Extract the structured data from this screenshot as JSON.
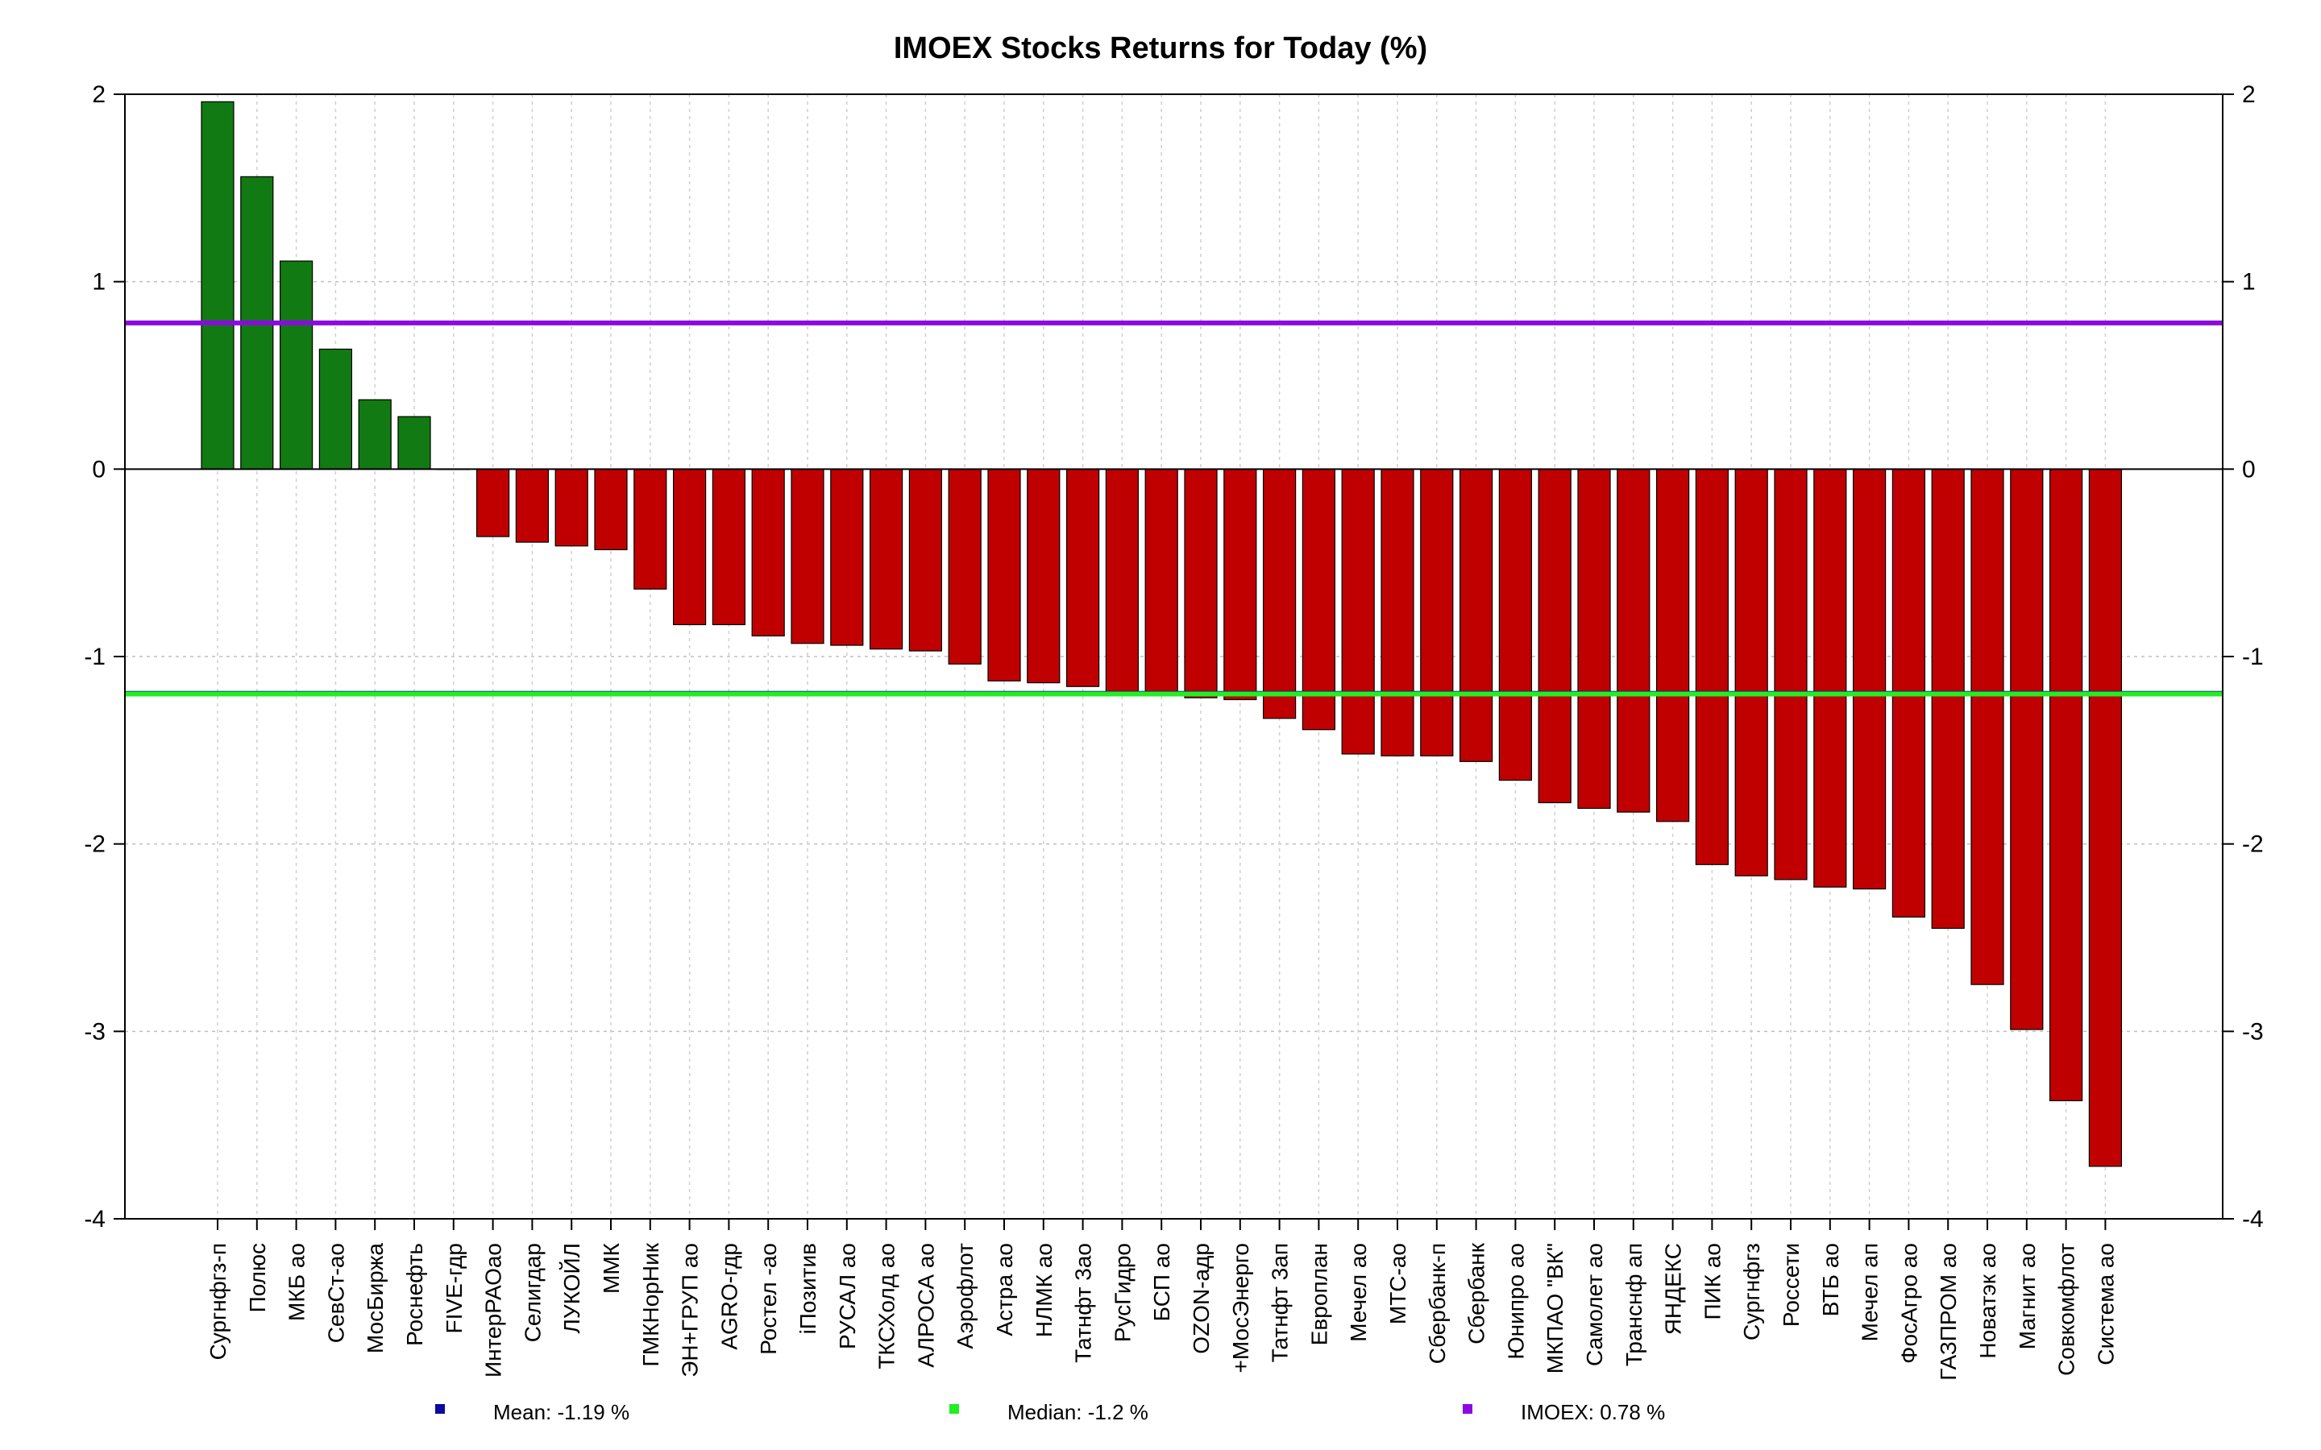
{
  "chart_data": {
    "type": "bar",
    "title": "IMOEX Stocks Returns for Today (%)",
    "xlabel": "",
    "ylabel": "",
    "ylim": [
      -4,
      2
    ],
    "yticks": [
      "2",
      "1",
      "0",
      "-1",
      "-2",
      "-3",
      "-4"
    ],
    "grid": true,
    "categories": [
      "Сургнфгз-п",
      "Полюс",
      "МКБ ао",
      "СевСт-ао",
      "МосБиржа",
      "Роснефть",
      "FIVE-гдр",
      "ИнтерРАОао",
      "Селигдар",
      "ЛУКОЙЛ",
      "ММК",
      "ГМКНорНик",
      "ЭН+ГРУП ао",
      "AGRO-гдр",
      "Ростел -ао",
      "iПозитив",
      "РУСАЛ ао",
      "ТКСХолд ао",
      "АЛРОСА ао",
      "Аэрофлот",
      "Астра ао",
      "НЛМК ао",
      "Татнфт 3ао",
      "РусГидро",
      "БСП ао",
      "OZON-адр",
      "+МосЭнерго",
      "Татнфт 3ап",
      "Европлан",
      "Мечел ао",
      "МТС-ао",
      "Сбербанк-п",
      "Сбербанк",
      "Юнипро ао",
      "МКПАО \"ВК\"",
      "Самолет ао",
      "Транснф ап",
      "ЯНДЕКС",
      "ПИК ао",
      "Сургнфгз",
      "Россети",
      "ВТБ ао",
      "Мечел ап",
      "ФосАгро ао",
      "ГАЗПРОМ ао",
      "Новатэк ао",
      "Магнит ао",
      "Совкомфлот",
      "Система ао"
    ],
    "values": [
      1.96,
      1.56,
      1.11,
      0.64,
      0.37,
      0.28,
      0.0,
      -0.36,
      -0.39,
      -0.41,
      -0.43,
      -0.64,
      -0.83,
      -0.83,
      -0.89,
      -0.93,
      -0.94,
      -0.96,
      -0.97,
      -1.04,
      -1.13,
      -1.14,
      -1.16,
      -1.2,
      -1.2,
      -1.22,
      -1.23,
      -1.33,
      -1.39,
      -1.52,
      -1.53,
      -1.53,
      -1.56,
      -1.66,
      -1.78,
      -1.81,
      -1.83,
      -1.88,
      -2.11,
      -2.17,
      -2.19,
      -2.23,
      -2.24,
      -2.39,
      -2.45,
      -2.75,
      -2.99,
      -3.37,
      -3.72
    ],
    "colors": {
      "positive": "#127a12",
      "negative": "#c00000",
      "mean": "#0a0aa0",
      "median": "#22ee22",
      "imoex": "#8a0ae0"
    },
    "reference_lines": [
      {
        "name": "Mean",
        "value": -1.19,
        "color": "#0a0aa0"
      },
      {
        "name": "Median",
        "value": -1.2,
        "color": "#22ee22"
      },
      {
        "name": "IMOEX",
        "value": 0.78,
        "color": "#8a0ae0"
      }
    ],
    "legend": {
      "placement": "bottom",
      "items": [
        {
          "label": "Mean: -1.19 %",
          "color": "#0a0aa0"
        },
        {
          "label": "Median: -1.2 %",
          "color": "#22ee22"
        },
        {
          "label": "IMOEX: 0.78 %",
          "color": "#8a0ae0"
        }
      ]
    }
  }
}
